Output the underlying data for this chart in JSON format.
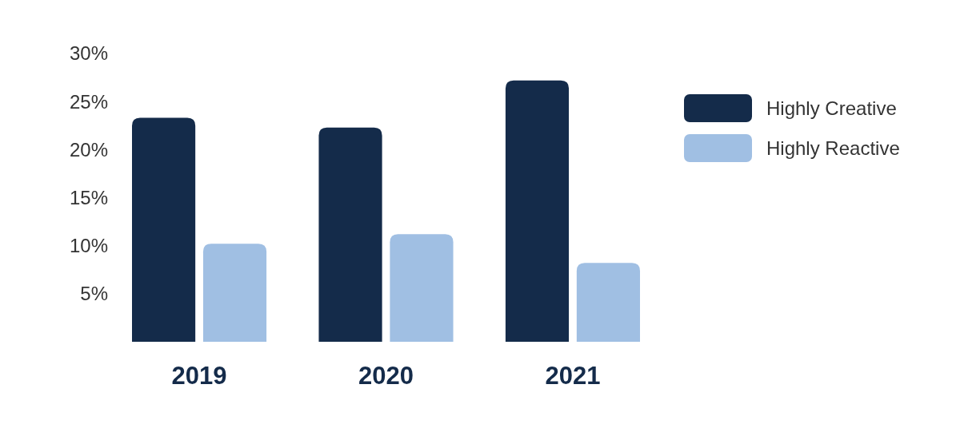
{
  "chart_data": {
    "type": "bar",
    "categories": [
      "2019",
      "2020",
      "2021"
    ],
    "series": [
      {
        "name": "Highly Creative",
        "color": "#142b4a",
        "values": [
          23.3,
          22.3,
          27.2
        ]
      },
      {
        "name": "Highly Reactive",
        "color": "#a0bfe3",
        "values": [
          10.2,
          11.2,
          8.2
        ]
      }
    ],
    "ylim": [
      0,
      30
    ],
    "yticks": [
      {
        "value": 5,
        "label": "5%"
      },
      {
        "value": 10,
        "label": "10%"
      },
      {
        "value": 15,
        "label": "15%"
      },
      {
        "value": 20,
        "label": "20%"
      },
      {
        "value": 25,
        "label": "25%"
      },
      {
        "value": 30,
        "label": "30%"
      }
    ],
    "grid": false,
    "legend": "right"
  }
}
